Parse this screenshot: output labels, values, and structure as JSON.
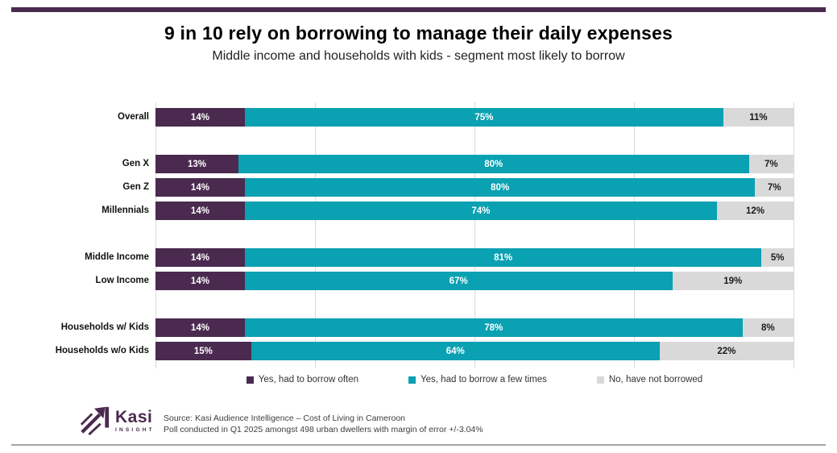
{
  "header": {
    "title": "9 in 10 rely on borrowing to manage their daily expenses",
    "subtitle": "Middle income and households with kids - segment most likely to borrow"
  },
  "chart_data": {
    "type": "bar",
    "orientation": "horizontal",
    "stacked": true,
    "unit": "%",
    "xlim": [
      0,
      100
    ],
    "grid": true,
    "gridline_positions_pct": [
      0,
      25,
      50,
      75,
      100
    ],
    "legend_position": "bottom",
    "categories": [
      "Overall",
      "Gen X",
      "Gen Z",
      "Millennials",
      "Middle Income",
      "Low Income",
      "Households w/ Kids",
      "Households w/o Kids"
    ],
    "category_groups": [
      [
        "Overall"
      ],
      [
        "Gen X",
        "Gen Z",
        "Millennials"
      ],
      [
        "Middle Income",
        "Low Income"
      ],
      [
        "Households w/ Kids",
        "Households w/o Kids"
      ]
    ],
    "series": [
      {
        "name": "Yes, had to borrow often",
        "color": "#4A2A4F",
        "values": [
          14,
          13,
          14,
          14,
          14,
          14,
          14,
          15
        ]
      },
      {
        "name": "Yes, had to borrow a few times",
        "color": "#0AA1B2",
        "values": [
          75,
          80,
          80,
          74,
          81,
          67,
          78,
          64
        ]
      },
      {
        "name": "No, have not borrowed",
        "color": "#D9D9D9",
        "values": [
          11,
          7,
          7,
          12,
          5,
          19,
          8,
          22
        ]
      }
    ]
  },
  "colors": {
    "accent_rule_top": "#4A2A4F",
    "rule_bottom": "#A6A6A6",
    "background": "#FFFFFF",
    "logo_purple": "#4A2A4F"
  },
  "footer": {
    "logo_text": "Kasi",
    "logo_subtext": "INSIGHT",
    "source_line1": "Source: Kasi Audience Intelligence – Cost of Living in Cameroon",
    "source_line2": "Poll conducted in Q1 2025 amongst 498 urban dwellers with margin of error +/-3.04%"
  }
}
